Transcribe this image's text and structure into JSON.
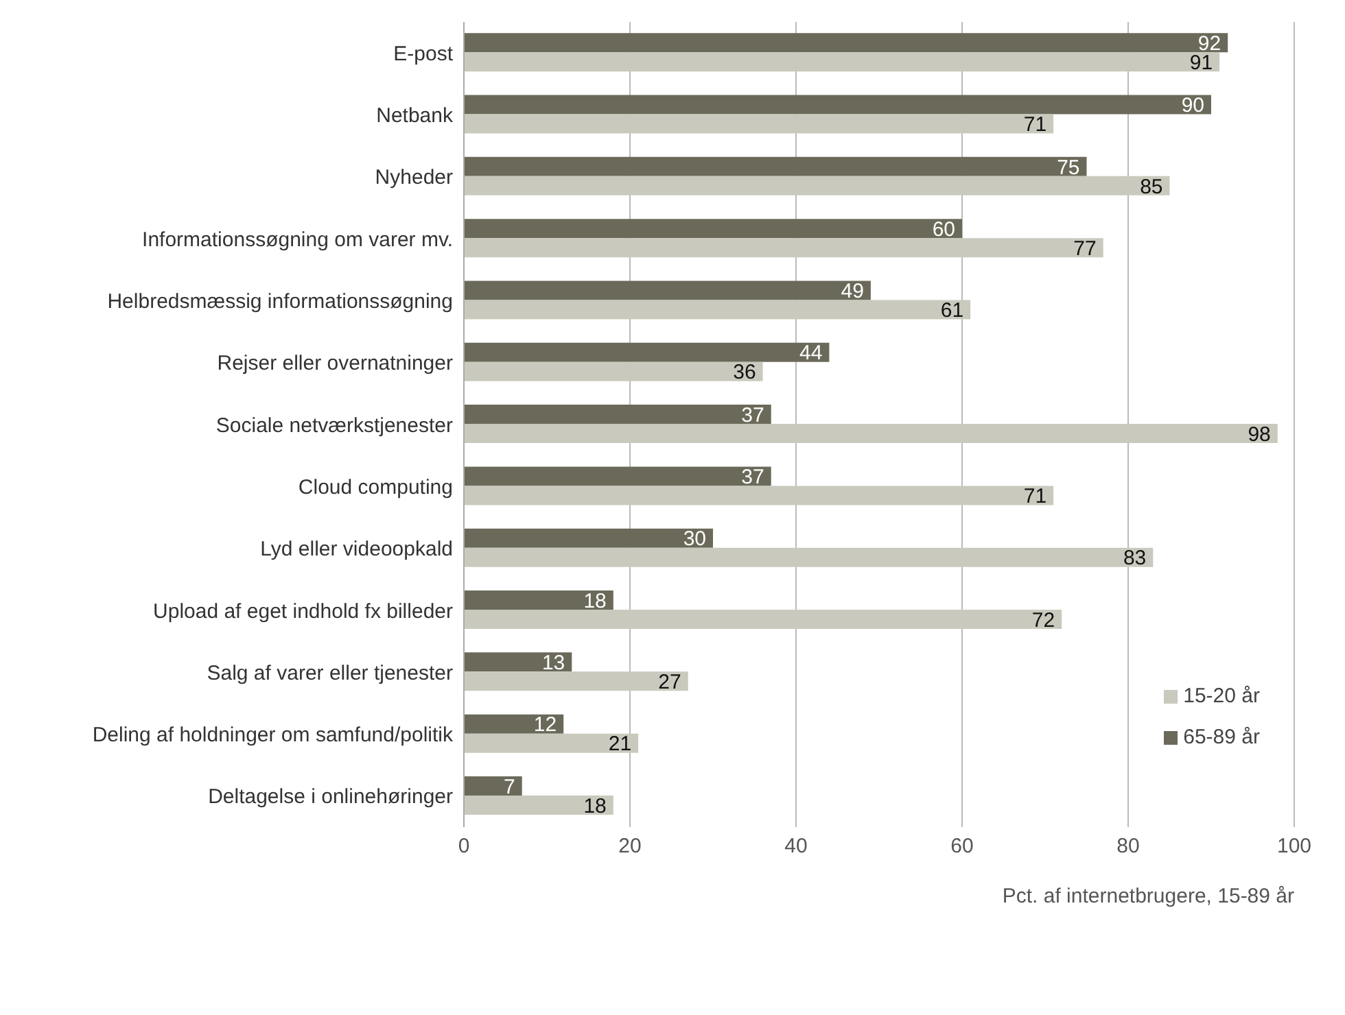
{
  "chart_data": {
    "type": "bar",
    "orientation": "horizontal",
    "xlabel": "Pct. af internetbrugere, 15-89 år",
    "categories": [
      "E-post",
      "Netbank",
      "Nyheder",
      "Informationssøgning om varer mv.",
      "Helbredsmæssig informationssøgning",
      "Rejser eller overnatninger",
      "Sociale netværkstjenester",
      "Cloud computing",
      "Lyd eller videoopkald",
      "Upload af eget indhold fx billeder",
      "Salg af varer eller tjenester",
      "Deling af holdninger om samfund/politik",
      "Deltagelse i onlinehøringer"
    ],
    "series": [
      {
        "name": "65-89 år",
        "color": "#6b6a5a",
        "values": [
          92,
          90,
          75,
          60,
          49,
          44,
          37,
          37,
          30,
          18,
          13,
          12,
          7
        ]
      },
      {
        "name": "15-20 år",
        "color": "#c9c9bd",
        "values": [
          91,
          71,
          85,
          77,
          61,
          36,
          98,
          71,
          83,
          72,
          27,
          21,
          18
        ]
      }
    ],
    "xlim": [
      0,
      100
    ],
    "xticks": [
      0,
      20,
      40,
      60,
      80,
      100
    ],
    "grid": "x",
    "legend": "bottom right",
    "data_labels": true
  }
}
